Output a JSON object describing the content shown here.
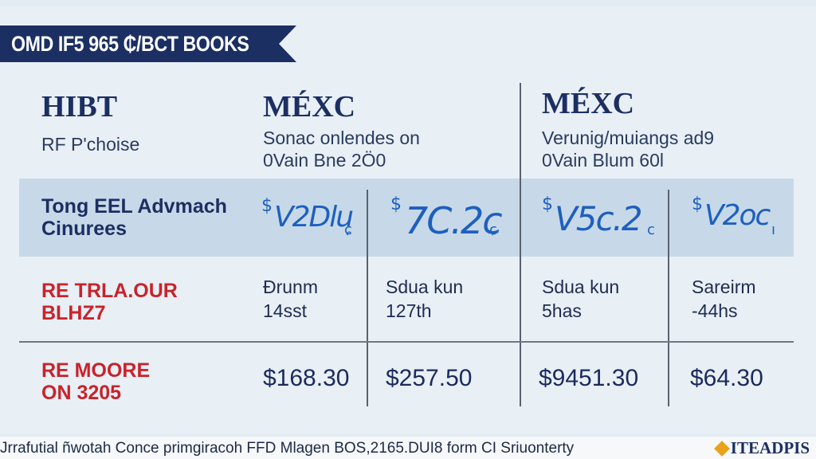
{
  "banner": {
    "text": "OMD IF5 965 ₵/BCT BOOKS",
    "color": "#1b2f63"
  },
  "columns": [
    {
      "title": "HIBT",
      "subtitle_lines": [
        "RF P'choise"
      ]
    },
    {
      "title": "MÉXC",
      "subtitle_lines": [
        "Sonac onlendes on",
        "0Vain Bne 2Ö0"
      ]
    },
    {
      "title": "MÉXC",
      "subtitle_lines": [
        "Verunig/muiangs ad9",
        "0Vain Blum 60l"
      ]
    }
  ],
  "rows": [
    {
      "label_lines": [
        "Tong EEL Advmach",
        "Cinurees"
      ],
      "label_color": "#1c2f62",
      "handwritten": [
        {
          "currency": "$",
          "text": "V2Dlu",
          "suffix": "ɕ"
        },
        {
          "currency": "$",
          "text": "7C.2c",
          "suffix": "ɕ"
        },
        {
          "currency": "$",
          "text": "V5c.2",
          "suffix": "c"
        },
        {
          "currency": "$",
          "text": "V2oc",
          "suffix": "ı"
        }
      ]
    },
    {
      "label_lines": [
        "RE TRLA.OUR",
        "BLHZ7"
      ],
      "label_color": "#c8232b",
      "cells": [
        {
          "top": "Ðrunm",
          "bottom": "14sst"
        },
        {
          "top": "Sdua kun",
          "bottom": "127th"
        },
        {
          "top": "Sdua kun",
          "bottom": "5has"
        },
        {
          "top": "Sareirm",
          "bottom": "-44hs"
        }
      ]
    },
    {
      "label_lines": [
        "RE MOORE",
        "ON 3205"
      ],
      "label_color": "#c8232b",
      "prices": [
        "$168.30",
        "$257.50",
        "$9451.30",
        "$64.30"
      ]
    }
  ],
  "footer": {
    "text": "Jrrafutial ñwotah Conce primgiracoh FFD Mlagen BOS,2165.DUI8 form CI Sriuonterty",
    "logo": "ITEADPIS",
    "logo_icon": "diamond-icon"
  },
  "colors": {
    "band": "#c7d9e8",
    "handwriting": "#1e5fbf",
    "accent_red": "#c8232b",
    "navy": "#1c2f62"
  }
}
